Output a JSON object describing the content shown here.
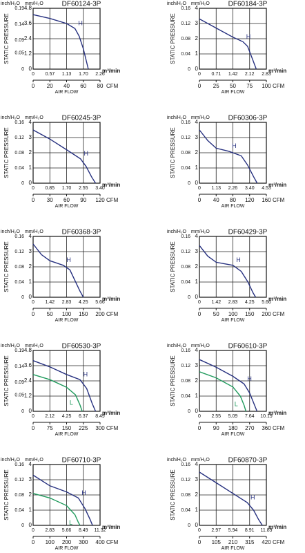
{
  "chart_data": [
    {
      "type": "line",
      "title": "DF60124-3P",
      "y_label": "STATIC PRESSURE",
      "y_unit": "mm/H₂O",
      "y2_unit": "inch/H₂O",
      "x_label": "AIR FLOW",
      "x_unit": "CFM",
      "x2_unit": "m³/min",
      "xlim": [
        0,
        80
      ],
      "xticks": [
        0,
        20,
        40,
        60,
        80
      ],
      "x2lim": [
        0,
        2.26
      ],
      "x2ticks": [
        0,
        0.57,
        1.13,
        {
          "value": 1.7,
          "label": "1.70"
        },
        2.26
      ],
      "ylim": [
        0,
        4.8
      ],
      "yticks": [
        0,
        1.2,
        2.4,
        3.6,
        4.8
      ],
      "y2lim": [
        0,
        0.19
      ],
      "y2ticks": [
        0,
        0.05,
        0.09,
        0.14,
        0.19
      ],
      "series": [
        {
          "name": "H",
          "color": "#26307f",
          "x": [
            0,
            20,
            40,
            50,
            55,
            60,
            66
          ],
          "values": [
            4.3,
            4.0,
            3.6,
            3.2,
            2.6,
            1.6,
            0
          ]
        }
      ]
    },
    {
      "type": "line",
      "title": "DF60184-3P",
      "y_label": "STATIC PRESSURE",
      "y_unit": "mm/H₂O",
      "y2_unit": "inch/H₂O",
      "x_label": "AIR FLOW",
      "x_unit": "CFM",
      "x2_unit": "m³/min",
      "xlim": [
        0,
        100
      ],
      "xticks": [
        0,
        25,
        50,
        75,
        100
      ],
      "x2lim": [
        0,
        2.83
      ],
      "x2ticks": [
        0,
        0.71,
        1.42,
        2.12,
        2.83
      ],
      "ylim": [
        0,
        4
      ],
      "yticks": [
        0,
        1,
        2,
        3,
        4
      ],
      "y2lim": [
        0,
        0.16
      ],
      "y2ticks": [
        0,
        0.04,
        0.08,
        0.12,
        0.16
      ],
      "series": [
        {
          "name": "H",
          "color": "#26307f",
          "x": [
            0,
            25,
            50,
            65,
            72,
            78,
            85
          ],
          "values": [
            3.3,
            2.7,
            2.1,
            1.8,
            1.5,
            0.8,
            0
          ]
        }
      ]
    },
    {
      "type": "line",
      "title": "DF60245-3P",
      "y_label": "STATIC PRESSURE",
      "y_unit": "mm/H₂O",
      "y2_unit": "inch/H₂O",
      "x_label": "AIR FLOW",
      "x_unit": "CFM",
      "x2_unit": "m³/min",
      "xlim": [
        0,
        120
      ],
      "xticks": [
        0,
        30,
        60,
        90,
        120
      ],
      "x2lim": [
        0,
        3.4
      ],
      "x2ticks": [
        0,
        0.85,
        {
          "value": 1.7,
          "label": "1.70"
        },
        2.55,
        {
          "value": 3.4,
          "label": "3.40"
        }
      ],
      "ylim": [
        0,
        4
      ],
      "yticks": [
        0,
        1,
        2,
        3,
        4
      ],
      "y2lim": [
        0,
        0.16
      ],
      "y2ticks": [
        0,
        0.04,
        0.08,
        0.12,
        0.16
      ],
      "series": [
        {
          "name": "H",
          "color": "#26307f",
          "x": [
            0,
            30,
            60,
            85,
            95,
            105,
            112
          ],
          "values": [
            3.5,
            2.9,
            2.2,
            1.6,
            1.1,
            0.4,
            0
          ]
        }
      ]
    },
    {
      "type": "line",
      "title": "DF60306-3P",
      "y_label": "STATIC PRESSURE",
      "y_unit": "mm/H₂O",
      "y2_unit": "inch/H₂O",
      "x_label": "AIR FLOW",
      "x_unit": "CFM",
      "x2_unit": "m³/min",
      "xlim": [
        0,
        160
      ],
      "xticks": [
        0,
        40,
        80,
        120,
        160
      ],
      "x2lim": [
        0,
        4.53
      ],
      "x2ticks": [
        0,
        1.13,
        2.26,
        {
          "value": 3.4,
          "label": "3.40"
        },
        4.53
      ],
      "ylim": [
        0,
        4
      ],
      "yticks": [
        0,
        1,
        2,
        3,
        4
      ],
      "y2lim": [
        0,
        0.16
      ],
      "y2ticks": [
        0,
        0.04,
        0.08,
        0.12,
        0.16
      ],
      "series": [
        {
          "name": "H",
          "color": "#26307f",
          "x": [
            0,
            20,
            40,
            70,
            100,
            115,
            130,
            138
          ],
          "values": [
            3.5,
            2.8,
            2.3,
            2.1,
            1.8,
            1.2,
            0.4,
            0
          ]
        }
      ]
    },
    {
      "type": "line",
      "title": "DF60368-3P",
      "y_label": "STATIC PRESSURE",
      "y_unit": "mm/H₂O",
      "y2_unit": "inch/H₂O",
      "x_label": "AIR FLOW",
      "x_unit": "CFM",
      "x2_unit": "m³/min",
      "xlim": [
        0,
        200
      ],
      "xticks": [
        0,
        50,
        100,
        150,
        200
      ],
      "x2lim": [
        0,
        5.66
      ],
      "x2ticks": [
        0,
        1.42,
        2.83,
        4.25,
        5.66
      ],
      "ylim": [
        0,
        4
      ],
      "yticks": [
        0,
        1,
        2,
        3,
        4
      ],
      "y2lim": [
        0,
        0.16
      ],
      "y2ticks": [
        0,
        0.04,
        0.08,
        0.12,
        0.16
      ],
      "series": [
        {
          "name": "H",
          "color": "#26307f",
          "x": [
            0,
            25,
            50,
            90,
            110,
            125,
            140,
            150
          ],
          "values": [
            3.5,
            2.8,
            2.4,
            2.1,
            1.8,
            1.1,
            0.4,
            0
          ]
        }
      ]
    },
    {
      "type": "line",
      "title": "DF60429-3P",
      "y_label": "STATIC PRESSURE",
      "y_unit": "mm/H₂O",
      "y2_unit": "inch/H₂O",
      "x_label": "AIR FLOW",
      "x_unit": "CFM",
      "x2_unit": "m³/min",
      "xlim": [
        0,
        200
      ],
      "xticks": [
        0,
        50,
        100,
        150,
        200
      ],
      "x2lim": [
        0,
        5.66
      ],
      "x2ticks": [
        0,
        1.42,
        2.83,
        4.25,
        5.66
      ],
      "ylim": [
        0,
        4
      ],
      "yticks": [
        0,
        1,
        2,
        3,
        4
      ],
      "y2lim": [
        0,
        0.16
      ],
      "y2ticks": [
        0,
        0.04,
        0.08,
        0.12,
        0.16
      ],
      "series": [
        {
          "name": "H",
          "color": "#26307f",
          "x": [
            0,
            25,
            50,
            100,
            125,
            145,
            160,
            168
          ],
          "values": [
            3.4,
            2.7,
            2.3,
            2.1,
            1.7,
            1.0,
            0.3,
            0
          ]
        }
      ]
    },
    {
      "type": "line",
      "title": "DF60530-3P",
      "y_label": "STATIC PRESSURE",
      "y_unit": "mm/H₂O",
      "y2_unit": "inch/H₂O",
      "x_label": "AIR FLOW",
      "x_unit": "CFM",
      "x2_unit": "m³/min",
      "xlim": [
        0,
        300
      ],
      "xticks": [
        0,
        75,
        150,
        225,
        300
      ],
      "x2lim": [
        0,
        8.49
      ],
      "x2ticks": [
        0,
        2.12,
        4.25,
        6.37,
        8.49
      ],
      "ylim": [
        0,
        4.8
      ],
      "yticks": [
        0,
        1.2,
        2.4,
        3.6,
        4.8
      ],
      "y2lim": [
        0,
        0.19
      ],
      "y2ticks": [
        0,
        0.05,
        0.09,
        0.14,
        0.19
      ],
      "series": [
        {
          "name": "H",
          "color": "#26307f",
          "x": [
            0,
            75,
            150,
            210,
            240,
            265,
            280
          ],
          "values": [
            4.0,
            3.5,
            2.9,
            2.5,
            1.8,
            0.6,
            0
          ]
        },
        {
          "name": "L",
          "color": "#1f9a5c",
          "x": [
            0,
            75,
            150,
            190,
            210,
            220
          ],
          "values": [
            2.9,
            2.5,
            1.9,
            1.3,
            0.5,
            0
          ]
        }
      ]
    },
    {
      "type": "line",
      "title": "DF60610-3P",
      "y_label": "STATIC PRESSURE",
      "y_unit": "mm/H₂O",
      "y2_unit": "inch/H₂O",
      "x_label": "AIR FLOW",
      "x_unit": "CFM",
      "x2_unit": "m³/min",
      "xlim": [
        0,
        360
      ],
      "xticks": [
        0,
        90,
        180,
        270,
        360
      ],
      "x2lim": [
        0,
        10.19
      ],
      "x2ticks": [
        0,
        2.55,
        5.09,
        7.64,
        10.19
      ],
      "ylim": [
        0,
        4
      ],
      "yticks": [
        0,
        1,
        2,
        3,
        4
      ],
      "y2lim": [
        0,
        0.16
      ],
      "y2ticks": [
        0,
        0.04,
        0.08,
        0.12,
        0.16
      ],
      "series": [
        {
          "name": "H",
          "color": "#26307f",
          "x": [
            0,
            90,
            180,
            240,
            270,
            300,
            310
          ],
          "values": [
            3.4,
            2.9,
            2.3,
            1.8,
            1.2,
            0.3,
            0
          ]
        },
        {
          "name": "L",
          "color": "#1f9a5c",
          "x": [
            0,
            90,
            180,
            220,
            240,
            250
          ],
          "values": [
            2.6,
            2.2,
            1.6,
            1.0,
            0.4,
            0
          ]
        }
      ]
    },
    {
      "type": "line",
      "title": "DF60710-3P",
      "y_label": "STATIC PRESSURE",
      "y_unit": "mm/H₂O",
      "y2_unit": "inch/H₂O",
      "x_label": "AIR FLOW",
      "x_unit": "CFM",
      "x2_unit": "m³/min",
      "xlim": [
        0,
        400
      ],
      "xticks": [
        0,
        100,
        200,
        300,
        400
      ],
      "x2lim": [
        0,
        11.32
      ],
      "x2ticks": [
        0,
        2.83,
        5.66,
        8.49,
        11.32
      ],
      "ylim": [
        0,
        4
      ],
      "yticks": [
        0,
        1,
        2,
        3,
        4
      ],
      "y2lim": [
        0,
        0.16
      ],
      "y2ticks": [
        0,
        0.04,
        0.08,
        0.12,
        0.16
      ],
      "series": [
        {
          "name": "H",
          "color": "#26307f",
          "x": [
            0,
            100,
            200,
            270,
            310,
            340,
            355
          ],
          "values": [
            3.3,
            2.6,
            2.2,
            1.8,
            1.1,
            0.4,
            0
          ]
        },
        {
          "name": "L",
          "color": "#1f9a5c",
          "x": [
            0,
            100,
            200,
            250,
            270,
            280
          ],
          "values": [
            2.1,
            1.8,
            1.3,
            0.7,
            0.2,
            0
          ]
        }
      ]
    },
    {
      "type": "line",
      "title": "DF60870-3P",
      "y_label": "STATIC PRESSURE",
      "y_unit": "mm/H₂O",
      "y2_unit": "inch/H₂O",
      "x_label": "AIR FLOW",
      "x_unit": "CFM",
      "x2_unit": "m³/min",
      "xlim": [
        0,
        420
      ],
      "xticks": [
        0,
        105,
        210,
        315,
        420
      ],
      "x2lim": [
        0,
        11.89
      ],
      "x2ticks": [
        0,
        2.97,
        5.94,
        8.91,
        11.89
      ],
      "ylim": [
        0,
        4
      ],
      "yticks": [
        0,
        1,
        2,
        3,
        4
      ],
      "y2lim": [
        0,
        0.16
      ],
      "y2ticks": [
        0,
        0.04,
        0.08,
        0.12,
        0.16
      ],
      "series": [
        {
          "name": "H",
          "color": "#26307f",
          "x": [
            0,
            105,
            210,
            300,
            340,
            370,
            395
          ],
          "values": [
            3.5,
            2.8,
            2.1,
            1.5,
            1.0,
            0.4,
            0
          ]
        }
      ]
    }
  ]
}
